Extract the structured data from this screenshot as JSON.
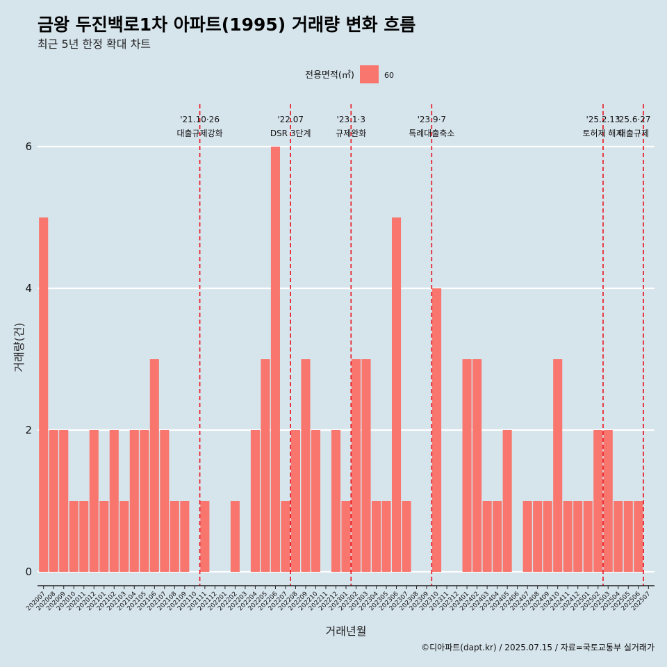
{
  "title": "금왕 두진백로1차 아파트(1995) 거래량 변화 흐름",
  "subtitle": "최근 5년 한정 확대 차트",
  "caption": "©디아파트(dapt.kr) / 2025.07.15 / 자료=국토교통부 실거래가",
  "colors": {
    "background": "#d6e4ec",
    "bar": "#f8766d",
    "event_line": "#e8141e",
    "grid": "#ffffff"
  },
  "chart_data": {
    "type": "bar",
    "xlabel": "거래년월",
    "ylabel": "거래량(건)",
    "ylim": [
      0,
      6
    ],
    "yticks": [
      0,
      2,
      4,
      6
    ],
    "legend": {
      "title": "전용면적(㎡)",
      "entries": [
        "60"
      ],
      "position": "top-center"
    },
    "grid": true,
    "categories": [
      "202007",
      "202008",
      "202009",
      "202010",
      "202011",
      "202012",
      "202101",
      "202102",
      "202103",
      "202104",
      "202105",
      "202106",
      "202107",
      "202108",
      "202109",
      "202110",
      "202111",
      "202112",
      "202201",
      "202202",
      "202203",
      "202204",
      "202205",
      "202206",
      "202207",
      "202208",
      "202209",
      "202210",
      "202211",
      "202212",
      "202301",
      "202302",
      "202303",
      "202304",
      "202305",
      "202306",
      "202307",
      "202308",
      "202309",
      "202310",
      "202311",
      "202312",
      "202401",
      "202402",
      "202403",
      "202404",
      "202405",
      "202406",
      "202407",
      "202408",
      "202409",
      "202410",
      "202411",
      "202412",
      "202501",
      "202502",
      "202503",
      "202504",
      "202505",
      "202506",
      "202507"
    ],
    "series": [
      {
        "name": "60",
        "values": [
          5,
          2,
          2,
          1,
          1,
          2,
          1,
          2,
          1,
          2,
          2,
          3,
          2,
          1,
          1,
          0,
          1,
          0,
          0,
          1,
          0,
          2,
          3,
          6,
          1,
          2,
          3,
          2,
          0,
          2,
          1,
          3,
          3,
          1,
          1,
          5,
          1,
          0,
          0,
          4,
          0,
          0,
          3,
          3,
          1,
          1,
          2,
          0,
          1,
          1,
          1,
          3,
          1,
          1,
          1,
          2,
          2,
          1,
          1,
          1,
          0
        ]
      }
    ],
    "events": [
      {
        "x": "202110",
        "date": "'21.10·26",
        "label": "대출규제강화"
      },
      {
        "x": "202207",
        "date": "'22.07",
        "label": "DSR 3단계"
      },
      {
        "x": "202301",
        "date": "'23.1·3",
        "label": "규제완화"
      },
      {
        "x": "202309",
        "date": "'23.9·7",
        "label": "특례대출축소"
      },
      {
        "x": "202502",
        "date": "'25.2.13",
        "label": "토허제 해제"
      },
      {
        "x": "202506",
        "date": "'25.6·27",
        "label": "대출규제"
      }
    ]
  }
}
